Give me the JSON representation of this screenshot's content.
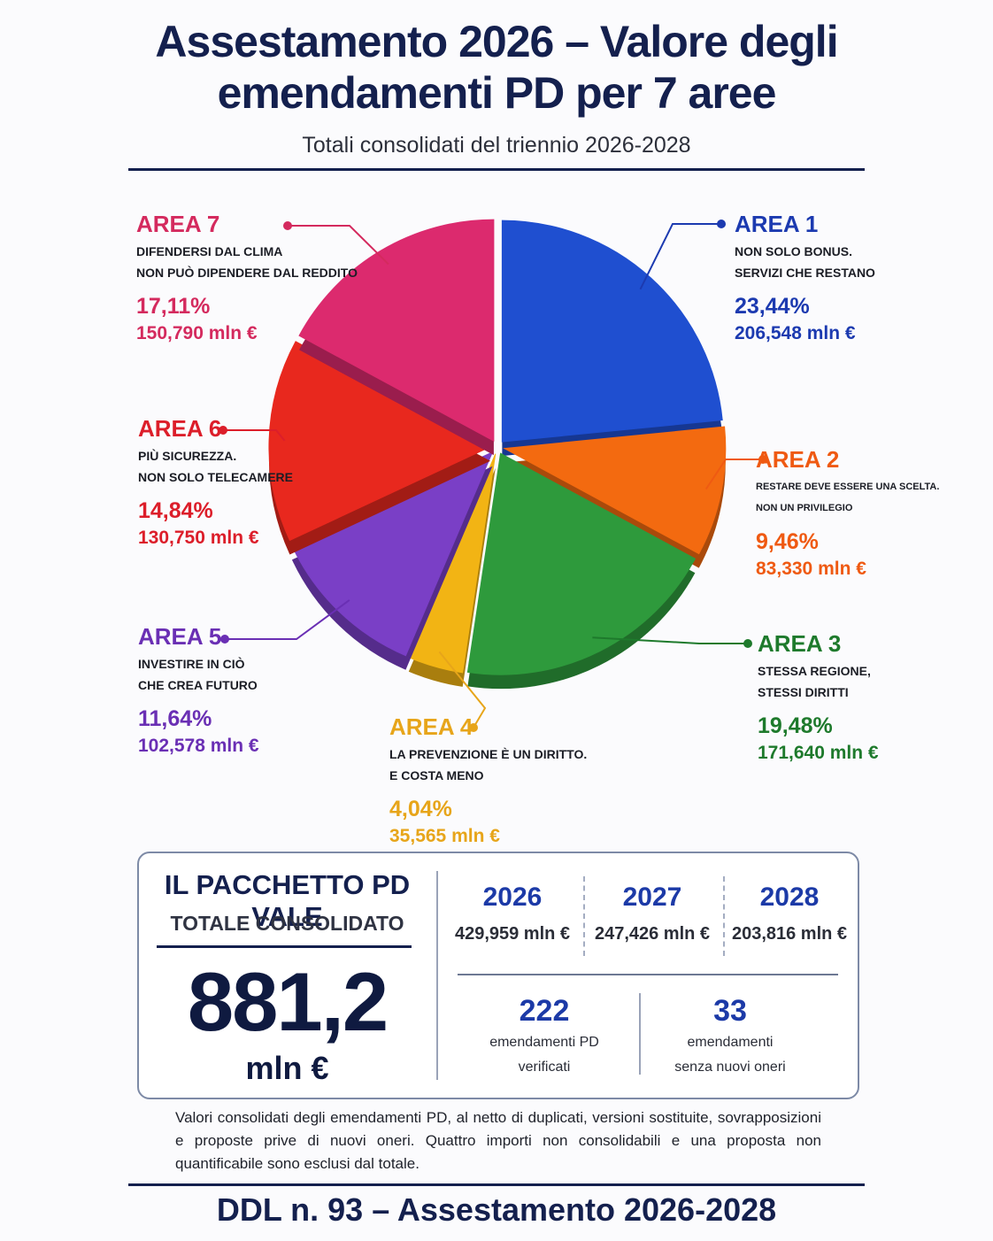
{
  "header": {
    "title_line1": "Assestamento 2026 – Valore degli",
    "title_line2": "emendamenti PD per 7 aree",
    "subtitle": "Totali consolidati del triennio 2026-2028"
  },
  "chart_data": {
    "type": "pie",
    "title": "Assestamento 2026 – Valore degli emendamenti PD per 7 aree",
    "subtitle": "Totali consolidati del triennio 2026-2028",
    "slices": [
      {
        "area": "AREA 1",
        "desc1": "NON SOLO BONUS.",
        "desc2": "SERVIZI CHE RESTANO",
        "percent": 23.44,
        "percent_label": "23,44%",
        "value_label": "206,548 mln €",
        "color": "#1f4fd0"
      },
      {
        "area": "AREA 2",
        "desc1": "RESTARE DEVE ESSERE UNA SCELTA.",
        "desc2": "NON UN PRIVILEGIO",
        "percent": 9.46,
        "percent_label": "9,46%",
        "value_label": "83,330 mln €",
        "color": "#f36a10"
      },
      {
        "area": "AREA 3",
        "desc1": "STESSA REGIONE,",
        "desc2": "STESSI DIRITTI",
        "percent": 19.48,
        "percent_label": "19,48%",
        "value_label": "171,640 mln €",
        "color": "#2e9a3c"
      },
      {
        "area": "AREA 4",
        "desc1": "LA PREVENZIONE È UN DIRITTO.",
        "desc2": "E COSTA MENO",
        "percent": 4.04,
        "percent_label": "4,04%",
        "value_label": "35,565 mln €",
        "color": "#f2b414"
      },
      {
        "area": "AREA 5",
        "desc1": "INVESTIRE IN CIÒ",
        "desc2": "CHE CREA FUTURO",
        "percent": 11.64,
        "percent_label": "11,64%",
        "value_label": "102,578 mln €",
        "color": "#7a3fc6"
      },
      {
        "area": "AREA 6",
        "desc1": "PIÙ SICUREZZA.",
        "desc2": "NON SOLO TELECAMERE",
        "percent": 14.84,
        "percent_label": "14,84%",
        "value_label": "130,750 mln €",
        "color": "#e8281e"
      },
      {
        "area": "AREA 7",
        "desc1": "DIFENDERSI DAL CLIMA",
        "desc2": "NON PUÒ DIPENDERE DAL REDDITO",
        "percent": 17.11,
        "percent_label": "17,11%",
        "value_label": "150,790 mln €",
        "color": "#dc2a6e"
      }
    ],
    "label_colors": [
      "#1c3ab0",
      "#ef5a12",
      "#1e7a2c",
      "#e7a51a",
      "#6a2fb4",
      "#dc1e2a",
      "#d42a5e"
    ]
  },
  "summary": {
    "heading": "IL PACCHETTO PD VALE",
    "subheading": "TOTALE CONSOLIDATO",
    "total": "881,2",
    "total_unit": "mln €",
    "years": [
      {
        "year": "2026",
        "value": "429,959 mln €"
      },
      {
        "year": "2027",
        "value": "247,426 mln €"
      },
      {
        "year": "2028",
        "value": "203,816 mln €"
      }
    ],
    "counts": [
      {
        "number": "222",
        "line1": "emendamenti PD",
        "line2": "verificati"
      },
      {
        "number": "33",
        "line1": "emendamenti",
        "line2": "senza nuovi oneri"
      }
    ]
  },
  "note": "Valori consolidati degli emendamenti PD, al netto di duplicati, versioni sostituite, sovrapposizioni e proposte prive di nuovi oneri. Quattro importi non consolidabili e una proposta non quantificabile sono esclusi dal totale.",
  "footer": "DDL n. 93 – Assestamento 2026-2028"
}
